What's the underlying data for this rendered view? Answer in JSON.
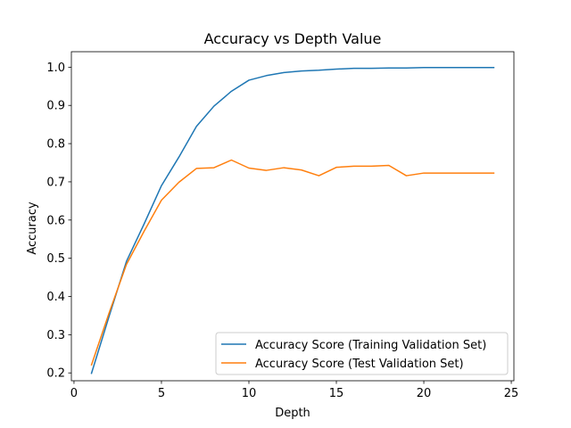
{
  "chart_data": {
    "type": "line",
    "title": "Accuracy vs Depth Value",
    "xlabel": "Depth",
    "ylabel": "Accuracy",
    "xlim": [
      -0.15,
      25.15
    ],
    "ylim": [
      0.1795,
      1.0405
    ],
    "xticks": [
      0,
      5,
      10,
      15,
      20,
      25
    ],
    "yticks": [
      0.2,
      0.3,
      0.4,
      0.5,
      0.6,
      0.7,
      0.8,
      0.9,
      1.0
    ],
    "xtick_labels": [
      "0",
      "5",
      "10",
      "15",
      "20",
      "25"
    ],
    "ytick_labels": [
      "0.2",
      "0.3",
      "0.4",
      "0.5",
      "0.6",
      "0.7",
      "0.8",
      "0.9",
      "1.0"
    ],
    "grid": false,
    "legend_position": "lower-right",
    "x": [
      1,
      2,
      3,
      4,
      5,
      6,
      7,
      8,
      9,
      10,
      11,
      12,
      13,
      14,
      15,
      16,
      17,
      18,
      19,
      20,
      21,
      22,
      23,
      24
    ],
    "series": [
      {
        "name": "Accuracy Score (Training Validation Set)",
        "color": "#1f77b4",
        "values": [
          0.199,
          0.347,
          0.492,
          0.589,
          0.69,
          0.765,
          0.845,
          0.898,
          0.937,
          0.966,
          0.978,
          0.986,
          0.99,
          0.992,
          0.995,
          0.997,
          0.997,
          0.998,
          0.998,
          0.999,
          0.999,
          0.999,
          0.999,
          0.999
        ]
      },
      {
        "name": "Accuracy Score (Test Validation Set)",
        "color": "#ff7f0e",
        "values": [
          0.221,
          0.356,
          0.484,
          0.57,
          0.652,
          0.699,
          0.735,
          0.737,
          0.757,
          0.736,
          0.73,
          0.737,
          0.731,
          0.716,
          0.738,
          0.741,
          0.741,
          0.743,
          0.716,
          0.723,
          0.723,
          0.723,
          0.723,
          0.723
        ]
      }
    ]
  }
}
